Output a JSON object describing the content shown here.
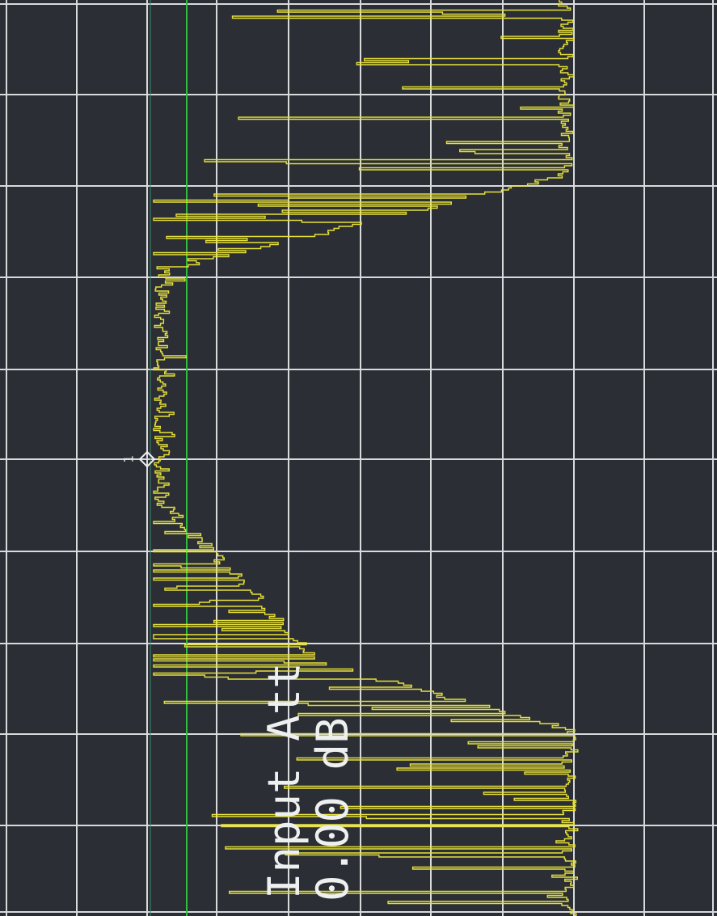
{
  "display": {
    "attenuation_label": "Input Att",
    "attenuation_value": "0.00 dB",
    "marker_label": "1"
  }
}
